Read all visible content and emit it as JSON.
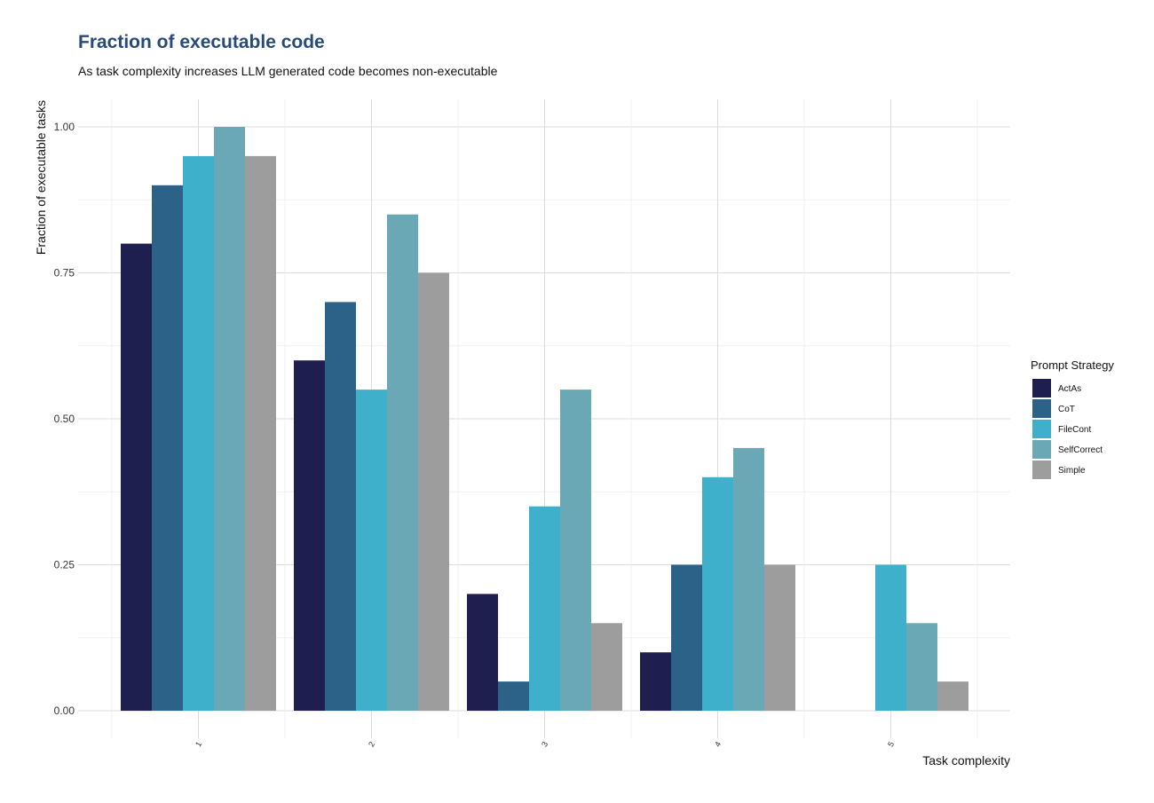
{
  "chart_data": {
    "type": "bar",
    "title": "Fraction of executable code",
    "subtitle": "As task complexity increases LLM generated code becomes non-executable",
    "xlabel": "Task complexity",
    "ylabel": "Fraction of executable tasks",
    "categories": [
      "1",
      "2",
      "3",
      "4",
      "5"
    ],
    "ylim": [
      0,
      1.0
    ],
    "yticks": [
      "0.00",
      "0.25",
      "0.50",
      "0.75",
      "1.00"
    ],
    "ytick_values": [
      0,
      0.25,
      0.5,
      0.75,
      1.0
    ],
    "grid": true,
    "legend_title": "Prompt Strategy",
    "legend_position": "right",
    "series": [
      {
        "name": "ActAs",
        "color": "#1f1f4f",
        "values": [
          0.8,
          0.6,
          0.2,
          0.1,
          0
        ]
      },
      {
        "name": "CoT",
        "color": "#2c6188",
        "values": [
          0.9,
          0.7,
          0.05,
          0.25,
          0
        ]
      },
      {
        "name": "FileCont",
        "color": "#3eb0cc",
        "values": [
          0.95,
          0.55,
          0.35,
          0.4,
          0.25
        ]
      },
      {
        "name": "SelfCorrect",
        "color": "#69a8b4",
        "values": [
          1.0,
          0.85,
          0.55,
          0.45,
          0.15
        ]
      },
      {
        "name": "Simple",
        "color": "#9d9d9d",
        "values": [
          0.95,
          0.75,
          0.15,
          0.25,
          0.05
        ]
      }
    ]
  }
}
